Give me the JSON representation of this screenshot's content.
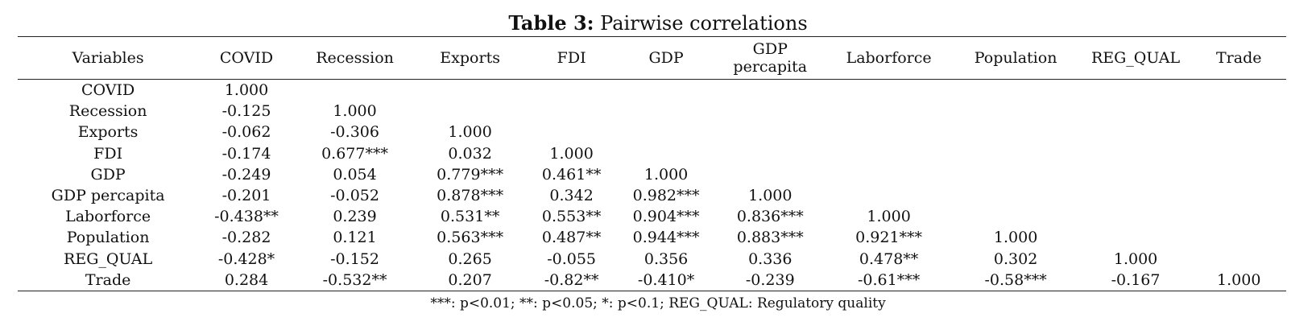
{
  "caption": {
    "label": "Table 3:",
    "title": " Pairwise correlations"
  },
  "header": {
    "variables": "Variables",
    "columns": [
      "COVID",
      "Recession",
      "Exports",
      "FDI",
      "GDP",
      "GDP percapita",
      "Laborforce",
      "Population",
      "REG_QUAL",
      "Trade"
    ]
  },
  "rows": [
    {
      "name": "COVID",
      "values": [
        "1.000",
        "",
        "",
        "",
        "",
        "",
        "",
        "",
        "",
        ""
      ]
    },
    {
      "name": "Recession",
      "values": [
        "-0.125",
        "1.000",
        "",
        "",
        "",
        "",
        "",
        "",
        "",
        ""
      ]
    },
    {
      "name": "Exports",
      "values": [
        "-0.062",
        "-0.306",
        "1.000",
        "",
        "",
        "",
        "",
        "",
        "",
        ""
      ]
    },
    {
      "name": "FDI",
      "values": [
        "-0.174",
        "0.677***",
        "0.032",
        "1.000",
        "",
        "",
        "",
        "",
        "",
        ""
      ]
    },
    {
      "name": "GDP",
      "values": [
        "-0.249",
        "0.054",
        "0.779***",
        "0.461**",
        "1.000",
        "",
        "",
        "",
        "",
        ""
      ]
    },
    {
      "name": "GDP percapita",
      "values": [
        "-0.201",
        "-0.052",
        "0.878***",
        "0.342",
        "0.982***",
        "1.000",
        "",
        "",
        "",
        ""
      ]
    },
    {
      "name": "Laborforce",
      "values": [
        "-0.438**",
        "0.239",
        "0.531**",
        "0.553**",
        "0.904***",
        "0.836***",
        "1.000",
        "",
        "",
        ""
      ]
    },
    {
      "name": "Population",
      "values": [
        "-0.282",
        "0.121",
        "0.563***",
        "0.487**",
        "0.944***",
        "0.883***",
        "0.921***",
        "1.000",
        "",
        ""
      ]
    },
    {
      "name": "REG_QUAL",
      "values": [
        "-0.428*",
        "-0.152",
        "0.265",
        "-0.055",
        "0.356",
        "0.336",
        "0.478**",
        "0.302",
        "1.000",
        ""
      ]
    },
    {
      "name": "Trade",
      "values": [
        "0.284",
        "-0.532**",
        "0.207",
        "-0.82**",
        "-0.410*",
        "-0.239",
        "-0.61***",
        "-0.58***",
        "-0.167",
        "1.000"
      ]
    }
  ],
  "note": "***: p<0.01; **: p<0.05; *: p<0.1; REG_QUAL: Regulatory quality"
}
